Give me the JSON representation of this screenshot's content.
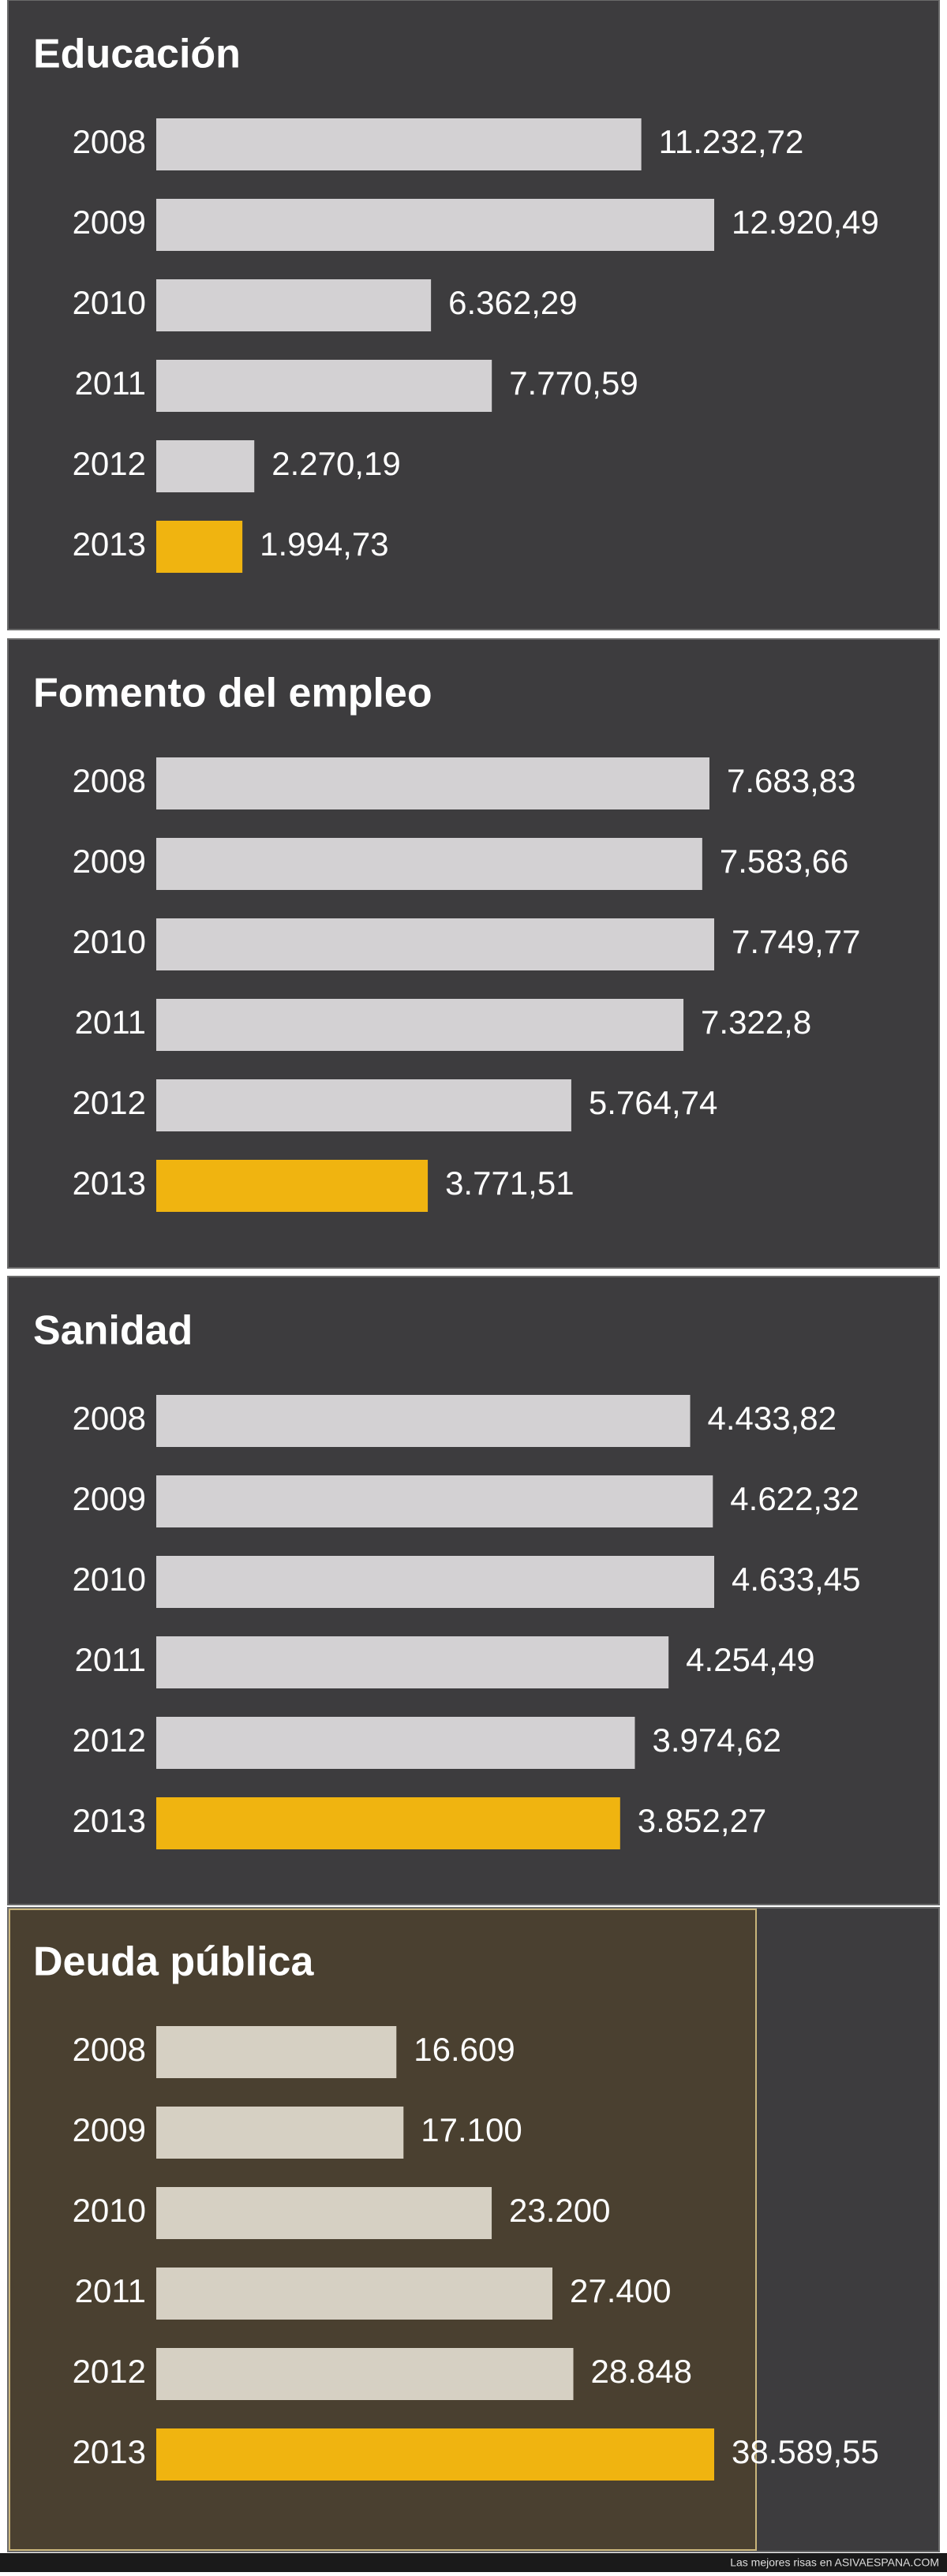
{
  "chart_data": [
    {
      "type": "bar",
      "orientation": "horizontal",
      "title": "Educación",
      "categories": [
        "2008",
        "2009",
        "2010",
        "2011",
        "2012",
        "2013"
      ],
      "values": [
        11232.72,
        12920.49,
        6362.29,
        7770.59,
        2270.19,
        1994.73
      ],
      "value_labels": [
        "11.232,72",
        "12.920,49",
        "6.362,29",
        "7.770,59",
        "2.270,19",
        "1.994,73"
      ],
      "colors": [
        "#d3d1d3",
        "#d3d1d3",
        "#d3d1d3",
        "#d3d1d3",
        "#d3d1d3",
        "#f0b410"
      ]
    },
    {
      "type": "bar",
      "orientation": "horizontal",
      "title": "Fomento del empleo",
      "categories": [
        "2008",
        "2009",
        "2010",
        "2011",
        "2012",
        "2013"
      ],
      "values": [
        7683.83,
        7583.66,
        7749.77,
        7322.8,
        5764.74,
        3771.51
      ],
      "value_labels": [
        "7.683,83",
        "7.583,66",
        "7.749,77",
        "7.322,8",
        "5.764,74",
        "3.771,51"
      ],
      "colors": [
        "#d3d1d3",
        "#d3d1d3",
        "#d3d1d3",
        "#d3d1d3",
        "#d3d1d3",
        "#f0b410"
      ]
    },
    {
      "type": "bar",
      "orientation": "horizontal",
      "title": "Sanidad",
      "categories": [
        "2008",
        "2009",
        "2010",
        "2011",
        "2012",
        "2013"
      ],
      "values": [
        4433.82,
        4622.32,
        4633.45,
        4254.49,
        3974.62,
        3852.27
      ],
      "value_labels": [
        "4.433,82",
        "4.622,32",
        "4.633,45",
        "4.254,49",
        "3.974,62",
        "3.852,27"
      ],
      "colors": [
        "#d3d1d3",
        "#d3d1d3",
        "#d3d1d3",
        "#d3d1d3",
        "#d3d1d3",
        "#f0b410"
      ]
    },
    {
      "type": "bar",
      "orientation": "horizontal",
      "title": "Deuda pública",
      "categories": [
        "2008",
        "2009",
        "2010",
        "2011",
        "2012",
        "2013"
      ],
      "values": [
        16609,
        17100,
        23200,
        27400,
        28848,
        38589.55
      ],
      "value_labels": [
        "16.609",
        "17.100",
        "23.200",
        "27.400",
        "28.848",
        "38.589,55"
      ],
      "colors": [
        "#d6d0c3",
        "#d6d0c3",
        "#d6d0c3",
        "#d6d0c3",
        "#d6d0c3",
        "#f0b410"
      ]
    }
  ],
  "footer": "Las mejores risas en ASIVAESPANA.COM"
}
